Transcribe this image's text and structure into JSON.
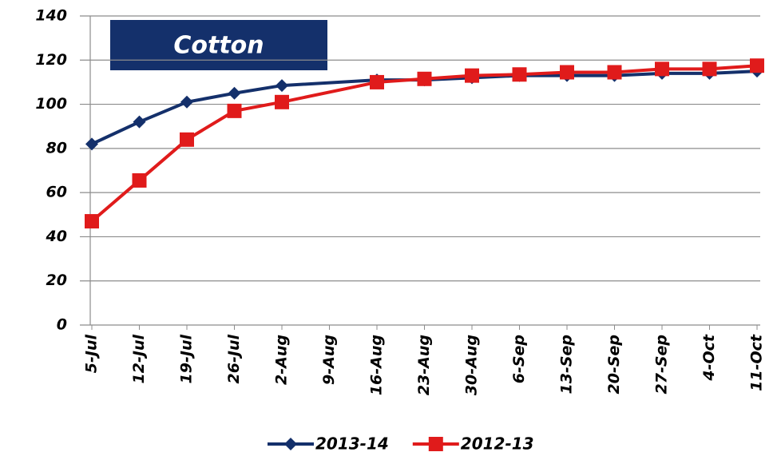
{
  "chart_data": {
    "type": "line",
    "title": "Cotton",
    "categories": [
      "5-Jul",
      "12-Jul",
      "19-Jul",
      "26-Jul",
      "2-Aug",
      "9-Aug",
      "16-Aug",
      "23-Aug",
      "30-Aug",
      "6-Sep",
      "13-Sep",
      "20-Sep",
      "27-Sep",
      "4-Oct",
      "11-Oct"
    ],
    "series": [
      {
        "name": "2013-14",
        "color": "#14306b",
        "marker": "diamond",
        "values": [
          82,
          92,
          101,
          105,
          108.5,
          null,
          111,
          111,
          112,
          113,
          113,
          113,
          114,
          114,
          115
        ]
      },
      {
        "name": "2012-13",
        "color": "#e01b1b",
        "marker": "square",
        "values": [
          47,
          65.5,
          84,
          97,
          101,
          null,
          110,
          111.5,
          113,
          113.5,
          114.5,
          114.5,
          116,
          116,
          117.5
        ]
      }
    ],
    "ylim": [
      0,
      140
    ],
    "yticks": [
      0,
      20,
      40,
      60,
      80,
      100,
      120,
      140
    ],
    "grid": true,
    "connect_gaps": true,
    "legend": "bottom"
  }
}
